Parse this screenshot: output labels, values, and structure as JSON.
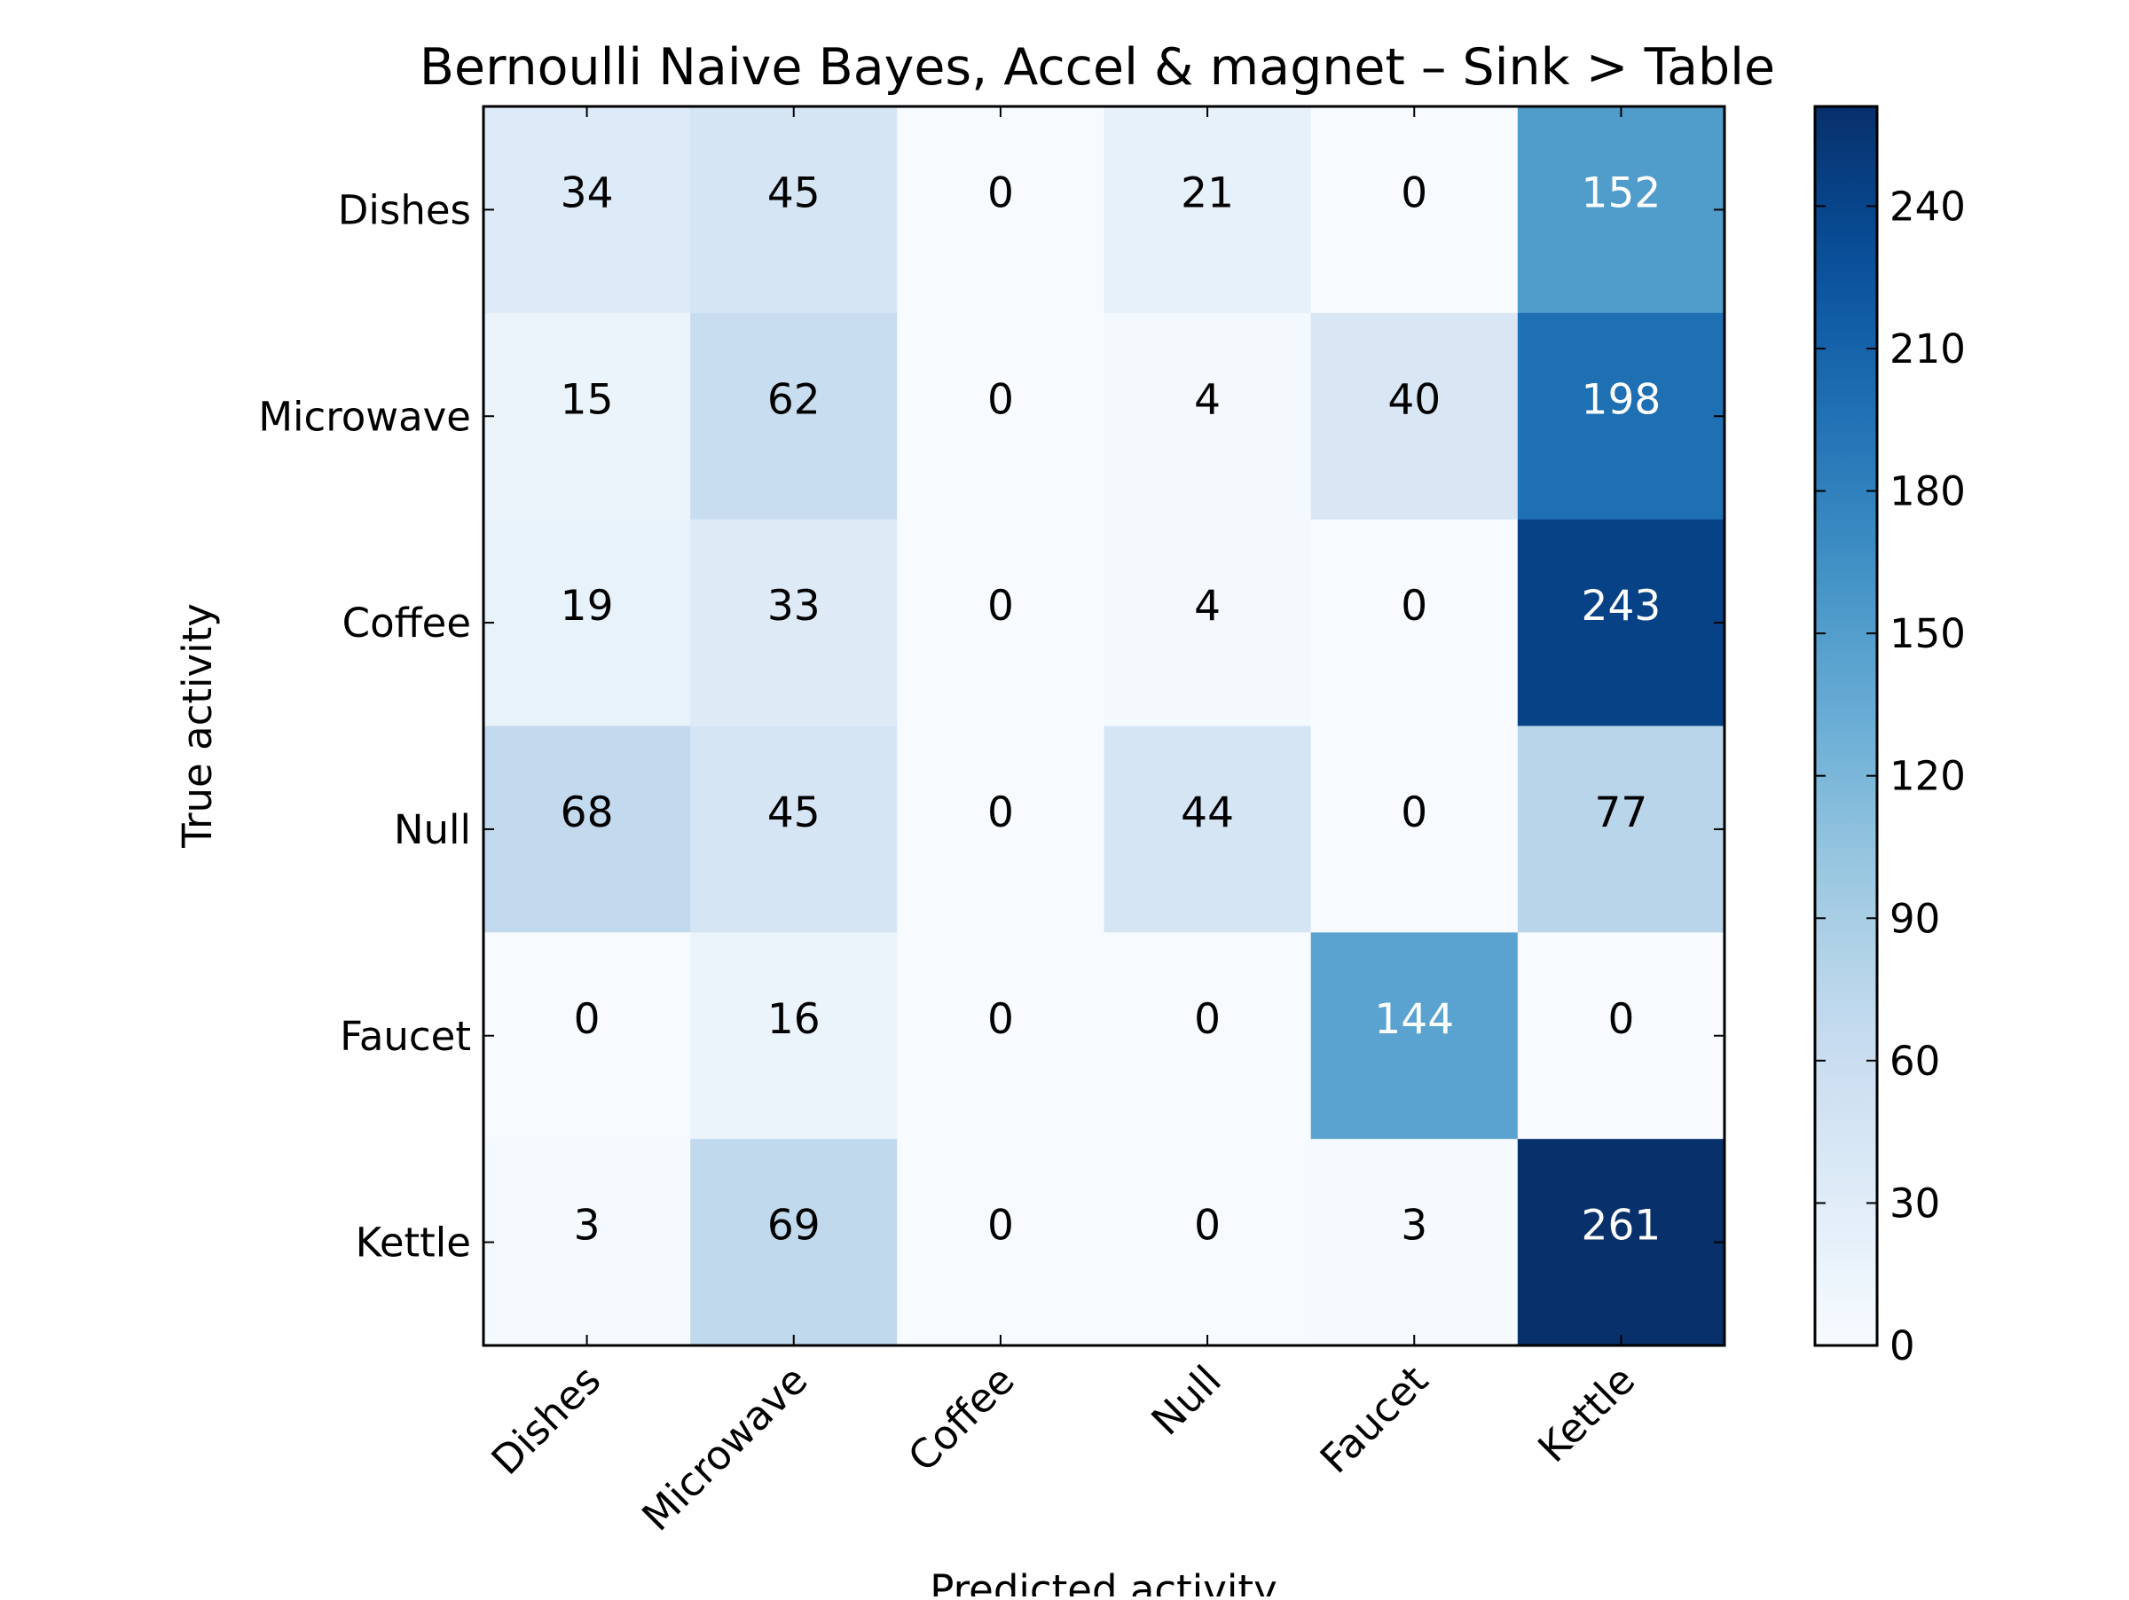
{
  "chart_data": {
    "type": "heatmap",
    "title": "Bernoulli Naive Bayes, Accel & magnet – Sink > Table",
    "xlabel": "Predicted activity",
    "ylabel": "True activity",
    "x_categories": [
      "Dishes",
      "Microwave",
      "Coffee",
      "Null",
      "Faucet",
      "Kettle"
    ],
    "y_categories": [
      "Dishes",
      "Microwave",
      "Coffee",
      "Null",
      "Faucet",
      "Kettle"
    ],
    "matrix": [
      [
        34,
        45,
        0,
        21,
        0,
        152
      ],
      [
        15,
        62,
        0,
        4,
        40,
        198
      ],
      [
        19,
        33,
        0,
        4,
        0,
        243
      ],
      [
        68,
        45,
        0,
        44,
        0,
        77
      ],
      [
        0,
        16,
        0,
        0,
        144,
        0
      ],
      [
        3,
        69,
        0,
        0,
        3,
        261
      ]
    ],
    "colormap": "Blues",
    "color_range": [
      0,
      261
    ],
    "colorbar_ticks": [
      0,
      30,
      60,
      90,
      120,
      150,
      180,
      210,
      240
    ],
    "colors": {
      "low": "#f7fbff",
      "high": "#08306b",
      "text_dark": "#000000",
      "text_light": "#ffffff"
    }
  }
}
